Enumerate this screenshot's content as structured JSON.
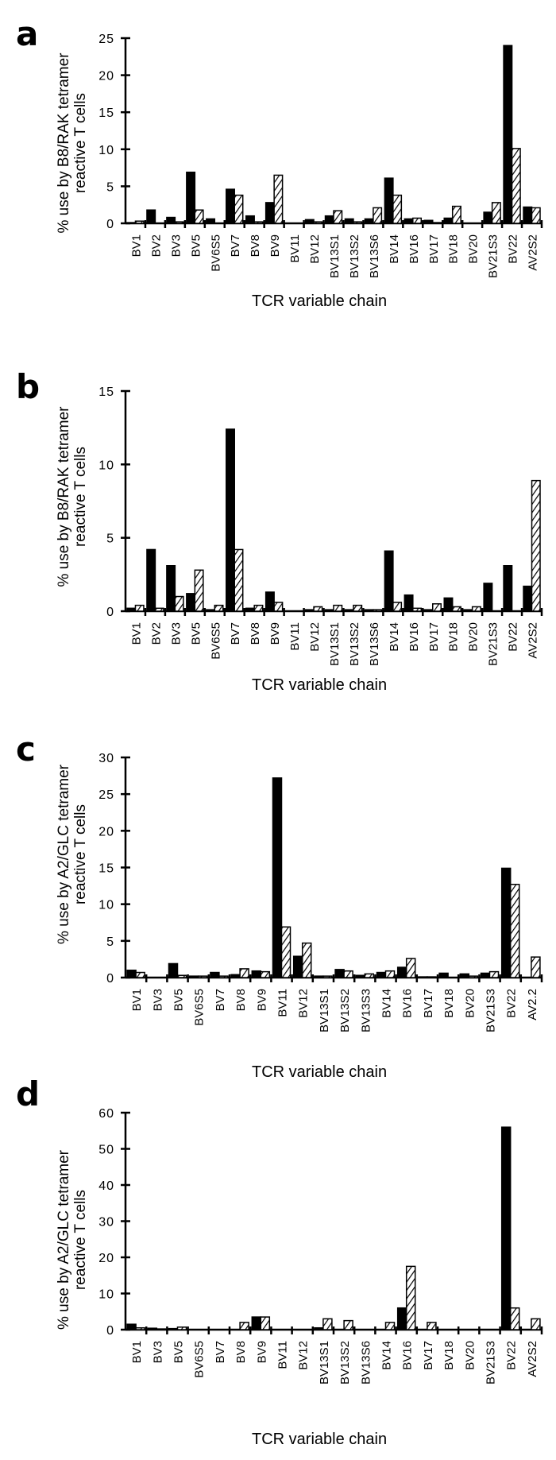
{
  "figure": {
    "legend_note": "Filled bars and hatched bars represent two series per panel"
  },
  "chart_data": [
    {
      "panel": "a",
      "type": "bar",
      "title": "",
      "xlabel": "TCR variable chain",
      "ylabel": "% use by B8/RAK tetramer reactive T cells",
      "ylabel_lines": [
        "% use by B8/RAK tetramer",
        "reactive T cells"
      ],
      "ylim": [
        0,
        25
      ],
      "yticks": [
        0,
        5,
        10,
        15,
        20,
        25
      ],
      "categories": [
        "BV1",
        "BV2",
        "BV3",
        "BV5",
        "BV6S5",
        "BV7",
        "BV8",
        "BV9",
        "BV11",
        "BV12",
        "BV13S1",
        "BV13S2",
        "BV13S6",
        "BV14",
        "BV16",
        "BV17",
        "BV18",
        "BV20",
        "BV21S3",
        "BV22",
        "AV2S2"
      ],
      "series": [
        {
          "name": "filled",
          "style": "solid",
          "values": [
            0.1,
            1.8,
            0.8,
            6.9,
            0.6,
            4.6,
            1.0,
            2.8,
            0.0,
            0.5,
            1.0,
            0.6,
            0.6,
            6.1,
            0.6,
            0.4,
            0.7,
            0.0,
            1.5,
            24.0,
            2.2
          ]
        },
        {
          "name": "hatched",
          "style": "hatched",
          "values": [
            0.3,
            0.0,
            0.2,
            1.8,
            0.0,
            3.8,
            0.2,
            6.5,
            0.0,
            0.2,
            1.7,
            0.2,
            2.1,
            3.8,
            0.7,
            0.1,
            2.3,
            0.0,
            2.8,
            10.1,
            2.1
          ]
        }
      ]
    },
    {
      "panel": "b",
      "type": "bar",
      "title": "",
      "xlabel": "TCR variable chain",
      "ylabel": "% use by B8/RAK tetramer reactive T cells",
      "ylabel_lines": [
        "% use by B8/RAK tetramer",
        "reactive T cells"
      ],
      "ylim": [
        0,
        15
      ],
      "yticks": [
        0,
        5,
        10,
        15
      ],
      "categories": [
        "BV1",
        "BV2",
        "BV3",
        "BV5",
        "BV6S5",
        "BV7",
        "BV8",
        "BV9",
        "BV11",
        "BV12",
        "BV13S1",
        "BV13S2",
        "BV13S6",
        "BV14",
        "BV16",
        "BV17",
        "BV18",
        "BV20",
        "BV21S3",
        "BV22",
        "AV2S2"
      ],
      "series": [
        {
          "name": "filled",
          "style": "solid",
          "values": [
            0.2,
            4.2,
            3.1,
            1.2,
            0.1,
            12.4,
            0.2,
            1.3,
            0.0,
            0.1,
            0.1,
            0.1,
            0.1,
            4.1,
            1.1,
            0.1,
            0.9,
            0.1,
            1.9,
            3.1,
            1.7
          ]
        },
        {
          "name": "hatched",
          "style": "hatched",
          "values": [
            0.4,
            0.2,
            1.0,
            2.8,
            0.4,
            4.2,
            0.4,
            0.6,
            0.0,
            0.3,
            0.4,
            0.4,
            0.1,
            0.6,
            0.2,
            0.5,
            0.3,
            0.3,
            0.0,
            0.0,
            8.9
          ]
        }
      ]
    },
    {
      "panel": "c",
      "type": "bar",
      "title": "",
      "xlabel": "TCR variable chain",
      "ylabel": "% use by A2/GLC tetramer reactive T cells",
      "ylabel_lines": [
        "% use by A2/GLC tetramer",
        "reactive T cells"
      ],
      "ylim": [
        0,
        30
      ],
      "yticks": [
        0,
        5,
        10,
        15,
        20,
        25,
        30
      ],
      "categories": [
        "BV1",
        "BV3",
        "BV5",
        "BV6S5",
        "BV7",
        "BV8",
        "BV9",
        "BV11",
        "BV12",
        "BV13S1",
        "BV13S2",
        "BV13S3",
        "BV14",
        "BV16",
        "BV17",
        "BV18",
        "BV20",
        "BV21S3",
        "BV22",
        "AV2.2"
      ],
      "series": [
        {
          "name": "filled",
          "style": "solid",
          "values": [
            1.0,
            0.0,
            1.9,
            0.2,
            0.7,
            0.4,
            0.9,
            27.2,
            2.9,
            0.2,
            1.1,
            0.3,
            0.7,
            1.4,
            0.1,
            0.6,
            0.5,
            0.6,
            14.9,
            0.0
          ]
        },
        {
          "name": "hatched",
          "style": "hatched",
          "values": [
            0.7,
            0.0,
            0.3,
            0.2,
            0.2,
            1.2,
            0.8,
            6.9,
            4.7,
            0.2,
            0.9,
            0.5,
            0.9,
            2.6,
            0.1,
            0.0,
            0.2,
            0.8,
            12.7,
            2.8
          ]
        }
      ]
    },
    {
      "panel": "d",
      "type": "bar",
      "title": "",
      "xlabel": "TCR variable chain",
      "ylabel": "% use by A2/GLC tetramer reactive T cells",
      "ylabel_lines": [
        "% use by A2/GLC tetramer",
        "reactive T cells"
      ],
      "ylim": [
        0,
        60
      ],
      "yticks": [
        0,
        10,
        20,
        30,
        40,
        50,
        60
      ],
      "categories": [
        "BV1",
        "BV3",
        "BV5",
        "BV6S5",
        "BV7",
        "BV8",
        "BV9",
        "BV11",
        "BV12",
        "BV13S1",
        "BV13S2",
        "BV13S6",
        "BV14",
        "BV16",
        "BV17",
        "BV18",
        "BV20",
        "BV21S3",
        "BV22",
        "AV2S2"
      ],
      "series": [
        {
          "name": "filled",
          "style": "solid",
          "values": [
            1.5,
            0.4,
            0.3,
            0.0,
            0.0,
            0.0,
            3.5,
            0.0,
            0.0,
            0.5,
            0.0,
            0.0,
            0.0,
            6.0,
            0.0,
            0.0,
            0.0,
            0.0,
            56.0,
            0.0
          ]
        },
        {
          "name": "hatched",
          "style": "hatched",
          "values": [
            0.5,
            0.2,
            0.7,
            0.0,
            0.0,
            2.0,
            3.5,
            0.0,
            0.0,
            3.0,
            2.5,
            0.0,
            2.0,
            17.5,
            2.0,
            0.0,
            0.0,
            0.0,
            6.0,
            3.0
          ]
        }
      ]
    }
  ]
}
